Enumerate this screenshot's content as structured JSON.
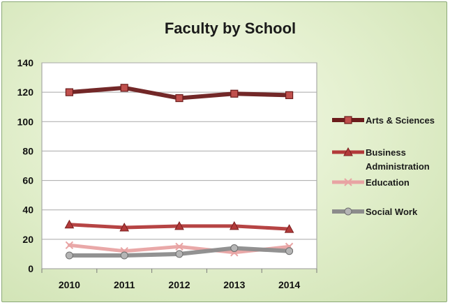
{
  "chart_data": {
    "type": "line",
    "title": "Faculty by School",
    "xlabel": "",
    "ylabel": "",
    "categories": [
      "2010",
      "2011",
      "2012",
      "2013",
      "2014"
    ],
    "ylim": [
      0,
      140
    ],
    "yticks": [
      0,
      20,
      40,
      60,
      80,
      100,
      120,
      140
    ],
    "grid": true,
    "legend_position": "right",
    "series": [
      {
        "name": "Arts & Sciences",
        "values": [
          120,
          123,
          116,
          119,
          118
        ],
        "color": "#6b1c1c",
        "marker": "square"
      },
      {
        "name": "Business Administration",
        "values": [
          30,
          28,
          29,
          29,
          27
        ],
        "color": "#b23a3a",
        "marker": "triangle"
      },
      {
        "name": "Education",
        "values": [
          16,
          12,
          15,
          11,
          15
        ],
        "color": "#e8a3a3",
        "marker": "x"
      },
      {
        "name": "Social Work",
        "values": [
          9,
          9,
          10,
          14,
          12
        ],
        "color": "#8c8c8c",
        "marker": "circle"
      }
    ]
  }
}
